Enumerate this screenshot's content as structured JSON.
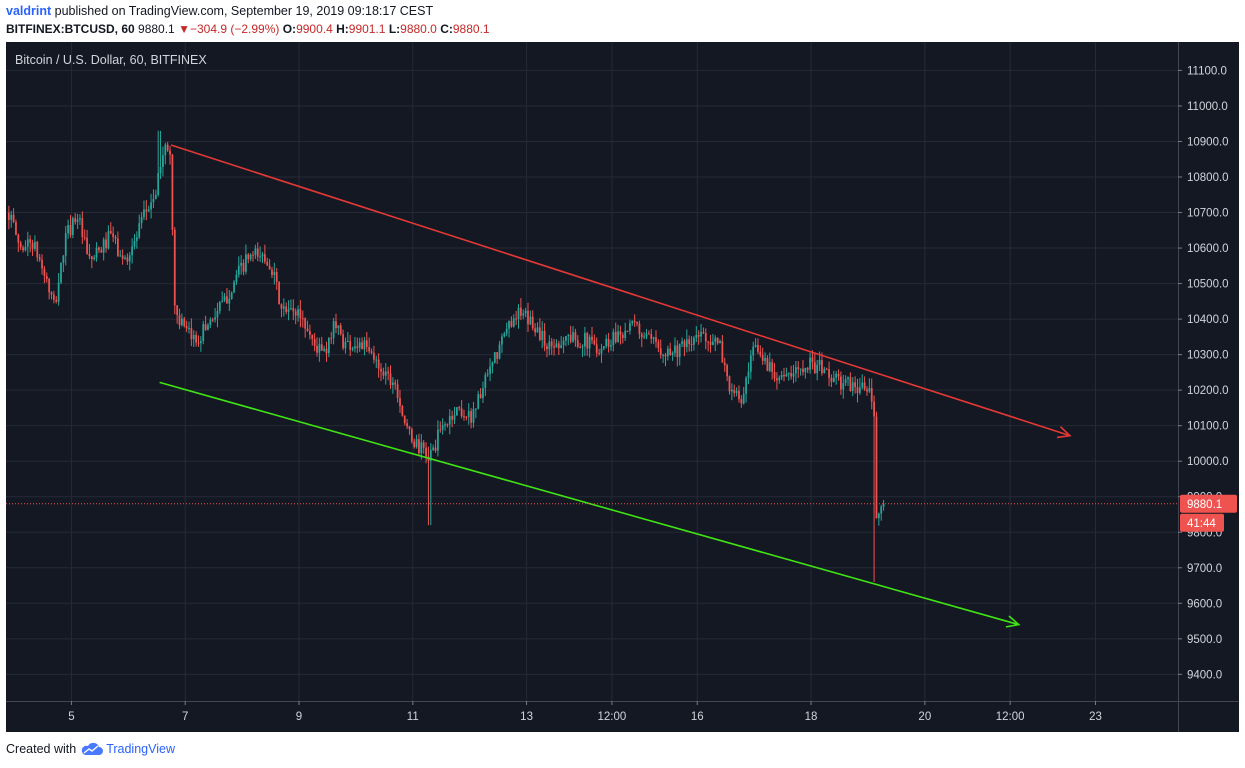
{
  "header": {
    "author": "valdrint",
    "published_text": " published on TradingView.com, September 19, 2019 09:18:17 CEST",
    "symbol": "BITFINEX:BTCUSD, 60",
    "last": "9880.1",
    "change": "−304.9 (−2.99%)",
    "open_label": "O:",
    "open": "9900.4",
    "high_label": "H:",
    "high": "9901.1",
    "low_label": "L:",
    "low": "9880.0",
    "close_label": "C:",
    "close": "9880.1"
  },
  "footer": {
    "created_with": "Created with",
    "brand": "TradingView"
  },
  "colors": {
    "background": "#141823",
    "grid": "#252a36",
    "up": "#26a69a",
    "down": "#ef5350",
    "resistance": "#e53935",
    "support": "#3fe614",
    "price_tag": "#ef5350"
  },
  "chart_data": {
    "type": "candlestick",
    "title": "Bitcoin / U.S. Dollar, 60, BITFINEX",
    "price_tag": "9880.1",
    "countdown_tag": "41:44",
    "y_ticks": [
      "11100.0",
      "11000.0",
      "10900.0",
      "10800.0",
      "10700.0",
      "10600.0",
      "10500.0",
      "10400.0",
      "10300.0",
      "10200.0",
      "10100.0",
      "10000.0",
      "9900.0",
      "9800.0",
      "9700.0",
      "9600.0",
      "9500.0",
      "9400.0"
    ],
    "y_tick_values": [
      11100,
      11000,
      10900,
      10800,
      10700,
      10600,
      10500,
      10400,
      10300,
      10200,
      10100,
      10000,
      9900,
      9800,
      9700,
      9600,
      9500,
      9400
    ],
    "ylim": [
      9325,
      11180
    ],
    "x_ticks": [
      "5",
      "7",
      "9",
      "11",
      "13",
      "12:00",
      "16",
      "18",
      "20",
      "12:00",
      "23"
    ],
    "x_tick_days": [
      5,
      7,
      9,
      11,
      13,
      14.5,
      16,
      18,
      20,
      21.5,
      23
    ],
    "xlim_days": [
      3.85,
      24.45
    ],
    "price_path": [
      [
        3.9,
        10700
      ],
      [
        4.1,
        10600
      ],
      [
        4.3,
        10620
      ],
      [
        4.5,
        10540
      ],
      [
        4.7,
        10430
      ],
      [
        4.9,
        10630
      ],
      [
        5.1,
        10700
      ],
      [
        5.3,
        10560
      ],
      [
        5.5,
        10590
      ],
      [
        5.7,
        10640
      ],
      [
        5.9,
        10560
      ],
      [
        6.1,
        10610
      ],
      [
        6.3,
        10700
      ],
      [
        6.5,
        10760
      ],
      [
        6.6,
        10880
      ],
      [
        6.75,
        10870
      ],
      [
        6.8,
        10440
      ],
      [
        7.0,
        10360
      ],
      [
        7.2,
        10340
      ],
      [
        7.4,
        10390
      ],
      [
        7.7,
        10450
      ],
      [
        7.9,
        10520
      ],
      [
        8.1,
        10570
      ],
      [
        8.3,
        10580
      ],
      [
        8.5,
        10560
      ],
      [
        8.7,
        10420
      ],
      [
        9.0,
        10420
      ],
      [
        9.3,
        10320
      ],
      [
        9.5,
        10300
      ],
      [
        9.6,
        10400
      ],
      [
        9.8,
        10330
      ],
      [
        10.1,
        10330
      ],
      [
        10.4,
        10270
      ],
      [
        10.7,
        10220
      ],
      [
        10.9,
        10080
      ],
      [
        11.1,
        10040
      ],
      [
        11.3,
        10010
      ],
      [
        11.5,
        10090
      ],
      [
        11.8,
        10150
      ],
      [
        12.0,
        10120
      ],
      [
        12.3,
        10230
      ],
      [
        12.6,
        10350
      ],
      [
        12.8,
        10420
      ],
      [
        13.1,
        10390
      ],
      [
        13.4,
        10320
      ],
      [
        13.7,
        10350
      ],
      [
        14.0,
        10340
      ],
      [
        14.3,
        10320
      ],
      [
        14.6,
        10360
      ],
      [
        14.9,
        10380
      ],
      [
        15.2,
        10330
      ],
      [
        15.5,
        10310
      ],
      [
        15.8,
        10320
      ],
      [
        16.1,
        10360
      ],
      [
        16.4,
        10320
      ],
      [
        16.6,
        10190
      ],
      [
        16.8,
        10170
      ],
      [
        17.0,
        10320
      ],
      [
        17.3,
        10260
      ],
      [
        17.6,
        10230
      ],
      [
        17.9,
        10280
      ],
      [
        18.2,
        10260
      ],
      [
        18.5,
        10220
      ],
      [
        18.8,
        10210
      ],
      [
        19.0,
        10200
      ],
      [
        19.1,
        10160
      ],
      [
        19.15,
        9840
      ],
      [
        19.3,
        9880
      ]
    ],
    "resistance_line": {
      "start": [
        6.75,
        10890
      ],
      "end": [
        22.55,
        10072
      ]
    },
    "support_line": {
      "start": [
        6.55,
        10222
      ],
      "end": [
        21.65,
        9540
      ]
    },
    "last_price": 9880.1
  }
}
